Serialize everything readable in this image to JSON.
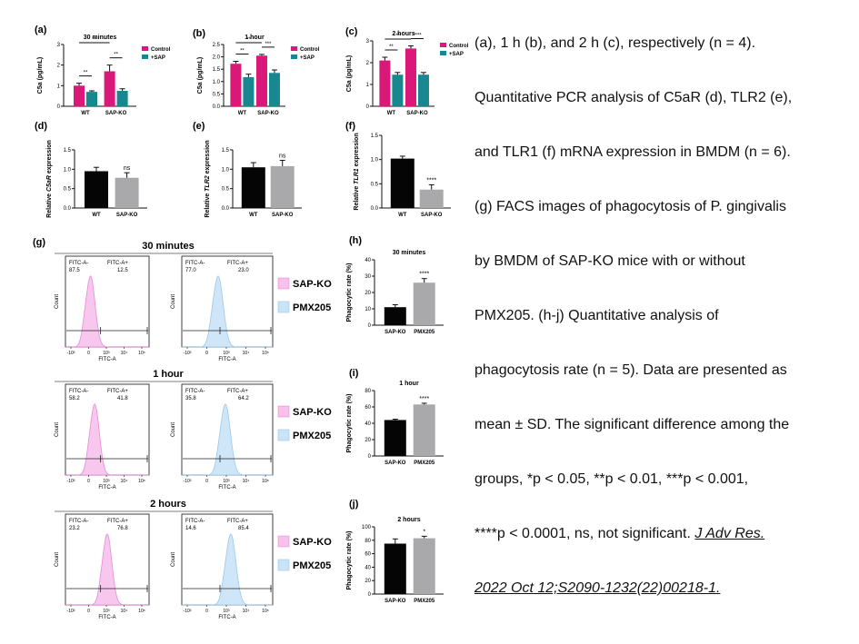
{
  "figure": {
    "top_panels": [
      {
        "letter": "(a)",
        "title": "30 minutes",
        "ylabel": "C5a (pg/mL)",
        "ticks": [
          "0",
          "1",
          "2",
          "3"
        ],
        "ymax": 3,
        "categories": [
          "WT",
          "SAP-KO"
        ],
        "values": [
          [
            1.0,
            0.7
          ],
          [
            1.7,
            0.75
          ]
        ],
        "errors": [
          [
            0.12,
            0.05
          ],
          [
            0.3,
            0.1
          ]
        ],
        "legend": [
          "Control",
          "+SAP"
        ],
        "sig": [
          {
            "label": "**",
            "type": "pair",
            "g": 0
          },
          {
            "label": "**",
            "type": "cross",
            "g": 0
          },
          {
            "label": "**",
            "type": "pair2",
            "g": 1
          }
        ]
      },
      {
        "letter": "(b)",
        "title": "1 hour",
        "ylabel": "C5a (pg/mL)",
        "ticks": [
          "0.0",
          "0.5",
          "1.0",
          "1.5",
          "2.0",
          "2.5"
        ],
        "ymax": 2.5,
        "categories": [
          "WT",
          "SAP-KO"
        ],
        "values": [
          [
            1.72,
            1.18
          ],
          [
            2.05,
            1.35
          ]
        ],
        "errors": [
          [
            0.1,
            0.12
          ],
          [
            0.05,
            0.12
          ]
        ],
        "legend": [
          "Control",
          "+SAP"
        ],
        "sig": [
          {
            "label": "**",
            "type": "pair",
            "g": 0
          },
          {
            "label": "**",
            "type": "cross",
            "g": 0
          },
          {
            "label": "***",
            "type": "pair2",
            "g": 1
          }
        ]
      },
      {
        "letter": "(c)",
        "title": "2 hours",
        "ylabel": "C5a (pg/mL)",
        "ticks": [
          "0",
          "1",
          "2",
          "3"
        ],
        "ymax": 3,
        "categories": [
          "WT",
          "SAP-KO"
        ],
        "values": [
          [
            2.1,
            1.45
          ],
          [
            2.65,
            1.45
          ]
        ],
        "errors": [
          [
            0.15,
            0.1
          ],
          [
            0.12,
            0.1
          ]
        ],
        "legend": [
          "Control",
          "+SAP"
        ],
        "sig": [
          {
            "label": "**",
            "type": "pair",
            "g": 0
          },
          {
            "label": "**",
            "type": "cross",
            "g": 0
          },
          {
            "label": "****",
            "type": "pair2",
            "g": 1
          }
        ]
      }
    ],
    "mid_panels": [
      {
        "letter": "(d)",
        "ylabel_pre": "Relative ",
        "ylabel_gene": "C5aR",
        "ylabel_post": " expression",
        "ticks": [
          "0.0",
          "0.5",
          "1.0",
          "1.5"
        ],
        "ymax": 1.5,
        "categories": [
          "WT",
          "SAP-KO"
        ],
        "values": [
          0.95,
          0.78
        ],
        "errors": [
          0.1,
          0.13
        ],
        "sig": "ns"
      },
      {
        "letter": "(e)",
        "ylabel_pre": "Relative ",
        "ylabel_gene": "TLR2",
        "ylabel_post": " expression",
        "ticks": [
          "0.0",
          "0.5",
          "1.0",
          "1.5"
        ],
        "ymax": 1.5,
        "categories": [
          "WT",
          "SAP-KO"
        ],
        "values": [
          1.05,
          1.08
        ],
        "errors": [
          0.12,
          0.15
        ],
        "sig": "ns"
      },
      {
        "letter": "(f)",
        "ylabel_pre": "Relative ",
        "ylabel_gene": "TLR1",
        "ylabel_post": " expression",
        "ticks": [
          "0.0",
          "0.5",
          "1.0",
          "1.5"
        ],
        "ymax": 1.5,
        "categories": [
          "WT",
          "SAP-KO"
        ],
        "values": [
          1.02,
          0.38
        ],
        "errors": [
          0.05,
          0.1
        ],
        "sig": "****"
      }
    ],
    "g_label": "(g)",
    "facs_rows": [
      {
        "title": "30 minutes",
        "left": {
          "neg_label": "FITC-A-",
          "neg": "87.5",
          "pos_label": "FITC-A+",
          "pos": "12.5"
        },
        "right": {
          "neg_label": "FITC-A-",
          "neg": "77.0",
          "pos_label": "FITC-A+",
          "pos": "23.0"
        }
      },
      {
        "title": "1 hour",
        "left": {
          "neg_label": "FITC-A-",
          "neg": "58.2",
          "pos_label": "FITC-A+",
          "pos": "41.8"
        },
        "right": {
          "neg_label": "FITC-A-",
          "neg": "35.8",
          "pos_label": "FITC-A+",
          "pos": "64.2"
        }
      },
      {
        "title": "2 hours",
        "left": {
          "neg_label": "FITC-A-",
          "neg": "23.2",
          "pos_label": "FITC-A+",
          "pos": "76.8"
        },
        "right": {
          "neg_label": "FITC-A-",
          "neg": "14.6",
          "pos_label": "FITC-A+",
          "pos": "85.4"
        }
      }
    ],
    "facs_axis": {
      "ylabel": "Count",
      "xlabel": "FITC-A",
      "xticks": [
        "-10³",
        "0",
        "10³",
        "10⁴",
        "10⁵"
      ]
    },
    "facs_legend": [
      "SAP-KO",
      "PMX205"
    ],
    "phago_panels": [
      {
        "letter": "(h)",
        "title": "30 minutes",
        "ylabel": "Phagocytic rate (%)",
        "ticks": [
          "0",
          "10",
          "20",
          "30",
          "40"
        ],
        "ymax": 40,
        "categories": [
          "SAP-KO",
          "PMX205"
        ],
        "values": [
          11,
          26
        ],
        "errors": [
          1.5,
          2.5
        ],
        "sig": "****"
      },
      {
        "letter": "(i)",
        "title": "1 hour",
        "ylabel": "Phagocytic rate (%)",
        "ticks": [
          "0",
          "20",
          "40",
          "60",
          "80"
        ],
        "ymax": 80,
        "categories": [
          "SAP-KO",
          "PMX205"
        ],
        "values": [
          44,
          63
        ],
        "errors": [
          1,
          1.5
        ],
        "sig": "****"
      },
      {
        "letter": "(j)",
        "title": "2 hours",
        "ylabel": "Phagocytic rate (%)",
        "ticks": [
          "0",
          "20",
          "40",
          "60",
          "80",
          "100"
        ],
        "ymax": 100,
        "categories": [
          "SAP-KO",
          "PMX205"
        ],
        "values": [
          75,
          83
        ],
        "errors": [
          7,
          3
        ],
        "sig": "*"
      }
    ]
  },
  "colors": {
    "control": "#d9187a",
    "sap": "#18878f",
    "black_bar": "#050505",
    "grey_bar": "#a9a9ab",
    "pink_fill": "#f7c1ec",
    "pink_line": "#e58cd8",
    "blue_fill": "#c9e3f7",
    "blue_line": "#9cc7e8"
  },
  "caption": {
    "lines": [
      "(a), 1 h (b), and 2 h (c), respectively (n = 4).",
      "Quantitative PCR analysis of C5aR (d), TLR2 (e),",
      "and TLR1 (f) mRNA expression in BMDM (n = 6).",
      "(g) FACS images of phagocytosis of P. gingivalis",
      "by BMDM of SAP-KO mice with or without",
      "PMX205. (h-j) Quantitative analysis of",
      "phagocytosis rate (n = 5). Data are presented as",
      "mean ± SD. The significant difference among the",
      "groups, *p < 0.05, **p < 0.01, ***p < 0.001,",
      "****p < 0.0001, ns, not significant."
    ],
    "reference_a": "J Adv Res.",
    "reference_b": "2022 Oct 12;S2090-1232(22)00218-1."
  }
}
